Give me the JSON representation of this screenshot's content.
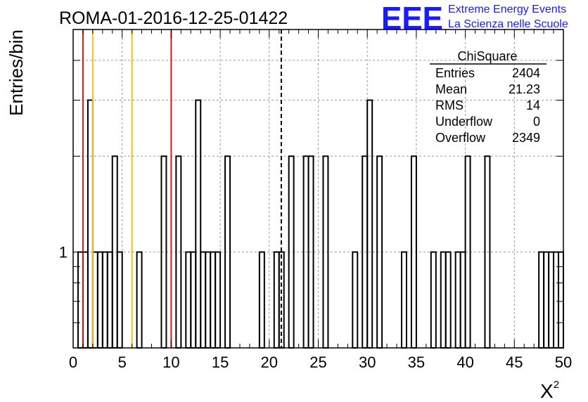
{
  "chart_data": {
    "type": "histogram",
    "title": "ROMA-01-2016-12-25-01422",
    "xlabel": "X",
    "xlabel_superscript": "2",
    "ylabel": "Entries/bin",
    "xlim": [
      0,
      50
    ],
    "ylim_log": [
      0.5,
      5
    ],
    "y_scale": "log",
    "x_ticks": [
      0,
      5,
      10,
      15,
      20,
      25,
      30,
      35,
      40,
      45,
      50
    ],
    "y_tick_labels": [
      {
        "value": 1,
        "label": "1"
      }
    ],
    "grid": true,
    "bin_width": 0.5,
    "bins": [
      [
        0.5,
        1
      ],
      [
        1.0,
        1
      ],
      [
        1.5,
        3
      ],
      [
        2.0,
        1
      ],
      [
        2.5,
        1
      ],
      [
        3.0,
        1
      ],
      [
        3.5,
        1
      ],
      [
        4.0,
        2
      ],
      [
        4.5,
        1
      ],
      [
        6.5,
        1
      ],
      [
        9.0,
        2
      ],
      [
        10.5,
        2
      ],
      [
        11.5,
        1
      ],
      [
        12.0,
        1
      ],
      [
        12.5,
        3
      ],
      [
        13.0,
        1
      ],
      [
        13.5,
        1
      ],
      [
        14.0,
        1
      ],
      [
        14.5,
        1
      ],
      [
        15.5,
        2
      ],
      [
        19.0,
        1
      ],
      [
        20.5,
        1
      ],
      [
        21.0,
        1
      ],
      [
        22.0,
        2
      ],
      [
        23.5,
        2
      ],
      [
        24.0,
        2
      ],
      [
        25.5,
        2
      ],
      [
        28.5,
        1
      ],
      [
        29.5,
        2
      ],
      [
        30.0,
        3
      ],
      [
        31.0,
        2
      ],
      [
        33.5,
        1
      ],
      [
        34.5,
        2
      ],
      [
        36.5,
        1
      ],
      [
        37.5,
        1
      ],
      [
        38.0,
        1
      ],
      [
        39.0,
        1
      ],
      [
        39.5,
        1
      ],
      [
        40.0,
        2
      ],
      [
        42.0,
        2
      ],
      [
        47.5,
        1
      ],
      [
        48.0,
        1
      ],
      [
        48.5,
        1
      ],
      [
        49.0,
        1
      ],
      [
        49.5,
        1
      ]
    ],
    "vertical_lines": [
      {
        "x": 1,
        "color": "#d81818",
        "style": "solid"
      },
      {
        "x": 2,
        "color": "#f0c020",
        "style": "solid"
      },
      {
        "x": 6,
        "color": "#f0c020",
        "style": "solid"
      },
      {
        "x": 10,
        "color": "#d81818",
        "style": "solid"
      },
      {
        "x": 21.23,
        "color": "#000000",
        "style": "dashed"
      }
    ],
    "stats_box": {
      "title": "ChiSquare",
      "rows": [
        {
          "label": "Entries",
          "value": "2404"
        },
        {
          "label": "Mean",
          "value": "21.23"
        },
        {
          "label": "RMS",
          "value": "14"
        },
        {
          "label": "Underflow",
          "value": "0"
        },
        {
          "label": "Overflow",
          "value": "2349"
        }
      ]
    }
  },
  "logo": {
    "mark": "EEE",
    "line1": "Extreme Energy Events",
    "line2": "La Scienza nelle Scuole",
    "color": "#1a1aff"
  }
}
